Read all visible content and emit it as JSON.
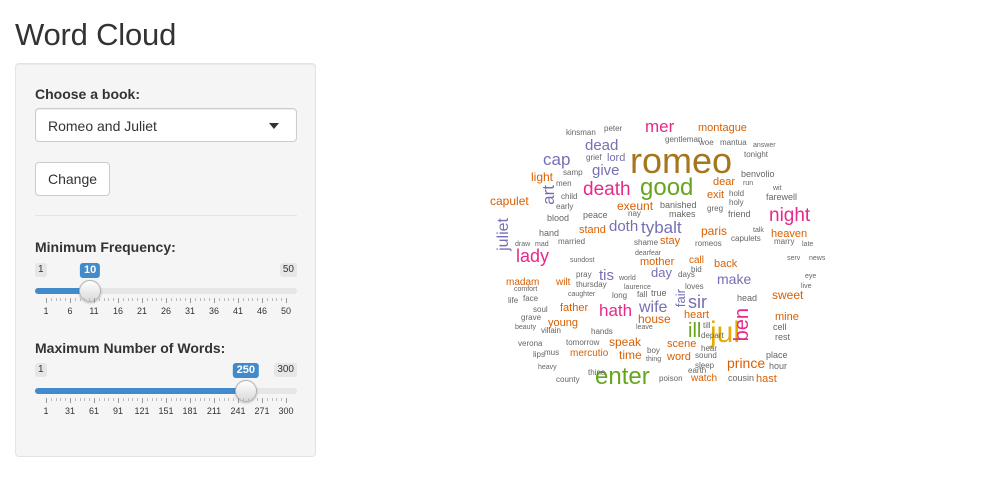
{
  "app": {
    "title": "Word Cloud"
  },
  "sidebar": {
    "book_label": "Choose a book:",
    "book_value": "Romeo and Juliet",
    "change_button": "Change",
    "freq_slider": {
      "label": "Minimum Frequency:",
      "min": 1,
      "max": 50,
      "value": 10,
      "min_label": "1",
      "max_label": "50",
      "value_label": "10",
      "tick_labels": [
        "1",
        "6",
        "11",
        "16",
        "21",
        "26",
        "31",
        "36",
        "41",
        "46",
        "50"
      ]
    },
    "words_slider": {
      "label": "Maximum Number of Words:",
      "min": 1,
      "max": 300,
      "value": 250,
      "min_label": "1",
      "max_label": "300",
      "value_label": "250",
      "tick_labels": [
        "1",
        "31",
        "61",
        "91",
        "121",
        "151",
        "181",
        "211",
        "241",
        "271",
        "300"
      ]
    }
  },
  "colors": {
    "accent": "#428bca"
  },
  "cloud": {
    "palette": {
      "olive": "#a6761d",
      "green": "#66a61e",
      "magenta": "#e7298a",
      "purple": "#7570b3",
      "orange": "#d95f02",
      "teal": "#1b9e77",
      "gold": "#e6ab02",
      "grey": "#666666"
    },
    "words": [
      {
        "t": "romeo",
        "c": "olive",
        "s": 36
      },
      {
        "t": "good",
        "c": "green",
        "s": 24
      },
      {
        "t": "jul",
        "c": "gold",
        "s": 30
      },
      {
        "t": "enter",
        "c": "green",
        "s": 24
      },
      {
        "t": "death",
        "c": "magenta",
        "s": 19
      },
      {
        "t": "night",
        "c": "magenta",
        "s": 19
      },
      {
        "t": "lady",
        "c": "magenta",
        "s": 18
      },
      {
        "t": "mer",
        "c": "magenta",
        "s": 17
      },
      {
        "t": "cap",
        "c": "purple",
        "s": 17
      },
      {
        "t": "dead",
        "c": "purple",
        "s": 15
      },
      {
        "t": "give",
        "c": "purple",
        "s": 15
      },
      {
        "t": "tybalt",
        "c": "purple",
        "s": 17
      },
      {
        "t": "hath",
        "c": "magenta",
        "s": 17
      },
      {
        "t": "wife",
        "c": "purple",
        "s": 16
      },
      {
        "t": "sir",
        "c": "purple",
        "s": 18
      },
      {
        "t": "ill",
        "c": "green",
        "s": 20
      },
      {
        "t": "ben",
        "c": "magenta",
        "s": 20
      },
      {
        "t": "art",
        "c": "purple",
        "s": 17
      },
      {
        "t": "juliet",
        "c": "purple",
        "s": 16
      },
      {
        "t": "doth",
        "c": "purple",
        "s": 15
      },
      {
        "t": "tis",
        "c": "purple",
        "s": 15
      },
      {
        "t": "make",
        "c": "purple",
        "s": 14
      },
      {
        "t": "prince",
        "c": "orange",
        "s": 14
      },
      {
        "t": "montague",
        "c": "orange",
        "s": 11
      },
      {
        "t": "capulet",
        "c": "orange",
        "s": 12
      },
      {
        "t": "exeunt",
        "c": "orange",
        "s": 12
      },
      {
        "t": "paris",
        "c": "orange",
        "s": 12
      },
      {
        "t": "heaven",
        "c": "orange",
        "s": 11
      },
      {
        "t": "sweet",
        "c": "orange",
        "s": 12
      },
      {
        "t": "light",
        "c": "orange",
        "s": 12
      },
      {
        "t": "house",
        "c": "orange",
        "s": 12
      },
      {
        "t": "speak",
        "c": "orange",
        "s": 12
      },
      {
        "t": "time",
        "c": "orange",
        "s": 12
      },
      {
        "t": "fair",
        "c": "purple",
        "s": 13
      },
      {
        "t": "day",
        "c": "purple",
        "s": 13
      },
      {
        "t": "mother",
        "c": "orange",
        "s": 11
      },
      {
        "t": "young",
        "c": "orange",
        "s": 11
      },
      {
        "t": "father",
        "c": "orange",
        "s": 11
      },
      {
        "t": "mine",
        "c": "orange",
        "s": 11
      },
      {
        "t": "back",
        "c": "orange",
        "s": 11
      },
      {
        "t": "dear",
        "c": "orange",
        "s": 11
      },
      {
        "t": "stay",
        "c": "orange",
        "s": 11
      },
      {
        "t": "stand",
        "c": "orange",
        "s": 11
      },
      {
        "t": "heart",
        "c": "orange",
        "s": 11
      },
      {
        "t": "word",
        "c": "orange",
        "s": 11
      },
      {
        "t": "scene",
        "c": "orange",
        "s": 11
      },
      {
        "t": "hast",
        "c": "orange",
        "s": 11
      },
      {
        "t": "exit",
        "c": "orange",
        "s": 11
      },
      {
        "t": "mercutio",
        "c": "orange",
        "s": 10
      },
      {
        "t": "wilt",
        "c": "orange",
        "s": 10
      },
      {
        "t": "madam",
        "c": "orange",
        "s": 10
      },
      {
        "t": "lord",
        "c": "purple",
        "s": 11
      },
      {
        "t": "benvolio",
        "c": "grey",
        "s": 9
      },
      {
        "t": "farewell",
        "c": "grey",
        "s": 9
      },
      {
        "t": "friend",
        "c": "grey",
        "s": 9
      },
      {
        "t": "banished",
        "c": "grey",
        "s": 9
      },
      {
        "t": "makes",
        "c": "grey",
        "s": 9
      },
      {
        "t": "watch",
        "c": "orange",
        "s": 10
      },
      {
        "t": "cousin",
        "c": "grey",
        "s": 9
      },
      {
        "t": "hour",
        "c": "grey",
        "s": 9
      },
      {
        "t": "place",
        "c": "grey",
        "s": 9
      },
      {
        "t": "rest",
        "c": "grey",
        "s": 9
      },
      {
        "t": "cell",
        "c": "grey",
        "s": 9
      },
      {
        "t": "head",
        "c": "grey",
        "s": 9
      },
      {
        "t": "call",
        "c": "orange",
        "s": 10
      },
      {
        "t": "true",
        "c": "grey",
        "s": 9
      },
      {
        "t": "peace",
        "c": "grey",
        "s": 9
      },
      {
        "t": "blood",
        "c": "grey",
        "s": 9
      },
      {
        "t": "hand",
        "c": "grey",
        "s": 9
      },
      {
        "t": "married",
        "c": "grey",
        "s": 8
      },
      {
        "t": "grave",
        "c": "grey",
        "s": 8
      },
      {
        "t": "villain",
        "c": "grey",
        "s": 8
      },
      {
        "t": "tomorrow",
        "c": "grey",
        "s": 8
      },
      {
        "t": "county",
        "c": "grey",
        "s": 8
      },
      {
        "t": "thine",
        "c": "grey",
        "s": 8
      },
      {
        "t": "earth",
        "c": "grey",
        "s": 8
      },
      {
        "t": "poison",
        "c": "grey",
        "s": 8
      },
      {
        "t": "sound",
        "c": "grey",
        "s": 8
      },
      {
        "t": "sleep",
        "c": "grey",
        "s": 8
      },
      {
        "t": "depart",
        "c": "grey",
        "s": 8
      },
      {
        "t": "kinsman",
        "c": "grey",
        "s": 8
      },
      {
        "t": "peter",
        "c": "grey",
        "s": 8
      },
      {
        "t": "mantua",
        "c": "grey",
        "s": 8
      },
      {
        "t": "woe",
        "c": "grey",
        "s": 8
      },
      {
        "t": "gentleman",
        "c": "grey",
        "s": 8
      },
      {
        "t": "tonight",
        "c": "grey",
        "s": 8
      },
      {
        "t": "answer",
        "c": "grey",
        "s": 7
      },
      {
        "t": "samp",
        "c": "grey",
        "s": 8
      },
      {
        "t": "grief",
        "c": "grey",
        "s": 8
      },
      {
        "t": "child",
        "c": "grey",
        "s": 8
      },
      {
        "t": "early",
        "c": "grey",
        "s": 8
      },
      {
        "t": "men",
        "c": "grey",
        "s": 8
      },
      {
        "t": "hold",
        "c": "grey",
        "s": 8
      },
      {
        "t": "holy",
        "c": "grey",
        "s": 8
      },
      {
        "t": "greg",
        "c": "grey",
        "s": 8
      },
      {
        "t": "nay",
        "c": "grey",
        "s": 8
      },
      {
        "t": "romeos",
        "c": "grey",
        "s": 8
      },
      {
        "t": "capulets",
        "c": "grey",
        "s": 8
      },
      {
        "t": "marry",
        "c": "grey",
        "s": 8
      },
      {
        "t": "late",
        "c": "grey",
        "s": 7
      },
      {
        "t": "news",
        "c": "grey",
        "s": 7
      },
      {
        "t": "eye",
        "c": "grey",
        "s": 7
      },
      {
        "t": "live",
        "c": "grey",
        "s": 7
      },
      {
        "t": "serv",
        "c": "grey",
        "s": 7
      },
      {
        "t": "sundost",
        "c": "grey",
        "s": 7
      },
      {
        "t": "pray",
        "c": "grey",
        "s": 8
      },
      {
        "t": "thursday",
        "c": "grey",
        "s": 8
      },
      {
        "t": "caughter",
        "c": "grey",
        "s": 7
      },
      {
        "t": "long",
        "c": "grey",
        "s": 8
      },
      {
        "t": "laurence",
        "c": "grey",
        "s": 7
      },
      {
        "t": "world",
        "c": "grey",
        "s": 7
      },
      {
        "t": "face",
        "c": "grey",
        "s": 8
      },
      {
        "t": "life",
        "c": "grey",
        "s": 8
      },
      {
        "t": "soul",
        "c": "grey",
        "s": 8
      },
      {
        "t": "hands",
        "c": "grey",
        "s": 8
      },
      {
        "t": "beauty",
        "c": "grey",
        "s": 7
      },
      {
        "t": "verona",
        "c": "grey",
        "s": 8
      },
      {
        "t": "lips",
        "c": "grey",
        "s": 8
      },
      {
        "t": "heavy",
        "c": "grey",
        "s": 7
      },
      {
        "t": "shame",
        "c": "grey",
        "s": 8
      },
      {
        "t": "days",
        "c": "grey",
        "s": 8
      },
      {
        "t": "loves",
        "c": "grey",
        "s": 8
      },
      {
        "t": "bid",
        "c": "grey",
        "s": 8
      },
      {
        "t": "fall",
        "c": "grey",
        "s": 8
      },
      {
        "t": "comfort",
        "c": "grey",
        "s": 7
      },
      {
        "t": "draw",
        "c": "grey",
        "s": 7
      },
      {
        "t": "mad",
        "c": "grey",
        "s": 7
      },
      {
        "t": "leave",
        "c": "grey",
        "s": 7
      },
      {
        "t": "till",
        "c": "grey",
        "s": 8
      },
      {
        "t": "hear",
        "c": "grey",
        "s": 8
      },
      {
        "t": "boy",
        "c": "grey",
        "s": 8
      },
      {
        "t": "thing",
        "c": "grey",
        "s": 7
      },
      {
        "t": "mus",
        "c": "grey",
        "s": 8
      },
      {
        "t": "run",
        "c": "grey",
        "s": 7
      },
      {
        "t": "wit",
        "c": "grey",
        "s": 7
      },
      {
        "t": "talk",
        "c": "grey",
        "s": 7
      },
      {
        "t": "dearfear",
        "c": "grey",
        "s": 7
      }
    ]
  }
}
